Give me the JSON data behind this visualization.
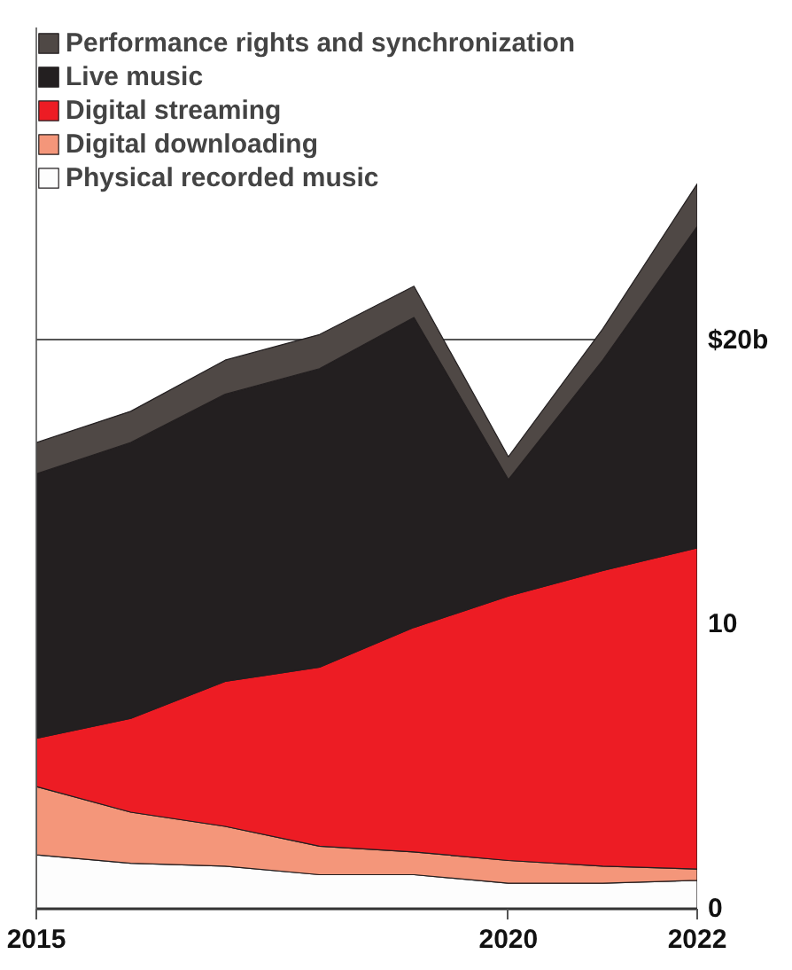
{
  "chart_data": {
    "type": "area",
    "stacked": true,
    "x": [
      2015,
      2016,
      2017,
      2018,
      2019,
      2020,
      2021,
      2022
    ],
    "series": [
      {
        "name": "Physical recorded music",
        "color": "#fdfdfd",
        "values": [
          1.9,
          1.6,
          1.5,
          1.2,
          1.2,
          0.9,
          0.9,
          1.0
        ]
      },
      {
        "name": "Digital downloading",
        "color": "#f4967a",
        "values": [
          2.4,
          1.8,
          1.4,
          1.0,
          0.8,
          0.8,
          0.6,
          0.4
        ]
      },
      {
        "name": "Digital streaming",
        "color": "#ed1c24",
        "values": [
          1.7,
          3.3,
          5.1,
          6.3,
          7.9,
          9.3,
          10.4,
          11.3
        ]
      },
      {
        "name": "Live music",
        "color": "#231f20",
        "values": [
          9.3,
          9.7,
          10.1,
          10.5,
          10.9,
          4.1,
          7.4,
          11.3
        ]
      },
      {
        "name": "Performance rights and synchronization",
        "color": "#4f4845",
        "values": [
          1.1,
          1.1,
          1.2,
          1.2,
          1.1,
          0.8,
          1.1,
          1.5
        ]
      }
    ],
    "xlim": [
      2015,
      2022
    ],
    "xticks": [
      2015,
      2020,
      2022
    ],
    "ylim": [
      0,
      31
    ],
    "yticks": [
      0,
      10,
      {
        "value": 20,
        "label": "$20b"
      }
    ],
    "grid": "y",
    "legend": "top left"
  }
}
